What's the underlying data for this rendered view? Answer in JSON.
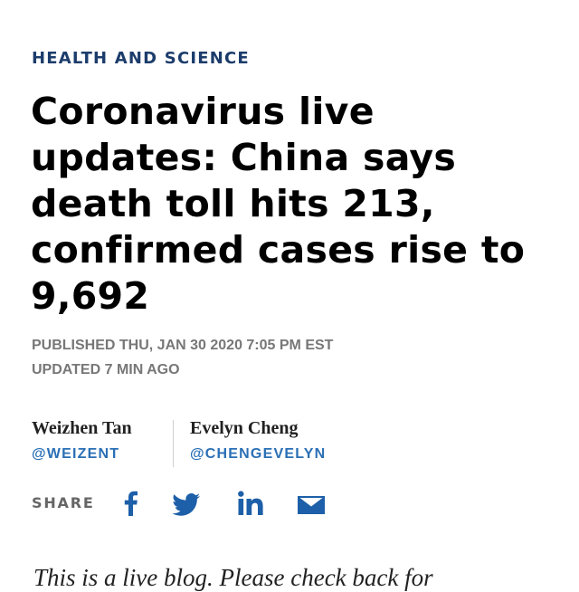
{
  "article": {
    "kicker": "HEALTH AND SCIENCE",
    "headline": "Coronavirus live updates: China says death toll hits 213, confirmed cases rise to 9,692",
    "published": "PUBLISHED THU, JAN 30 2020 7:05 PM EST",
    "updated": "UPDATED 7 MIN AGO",
    "authors": [
      {
        "name": "Weizhen Tan",
        "handle": "@WEIZENT"
      },
      {
        "name": "Evelyn Cheng",
        "handle": "@CHENGEVELYN"
      }
    ],
    "share": {
      "label": "SHARE",
      "icons": [
        "facebook-icon",
        "twitter-icon",
        "linkedin-icon",
        "email-icon"
      ]
    },
    "body_lead": "This is a live blog. Please check back for"
  },
  "colors": {
    "kicker": "#1c3c6b",
    "headline": "#000000",
    "meta": "#777777",
    "handle": "#2a6fb5",
    "share_icons": "#1d5fa8"
  }
}
